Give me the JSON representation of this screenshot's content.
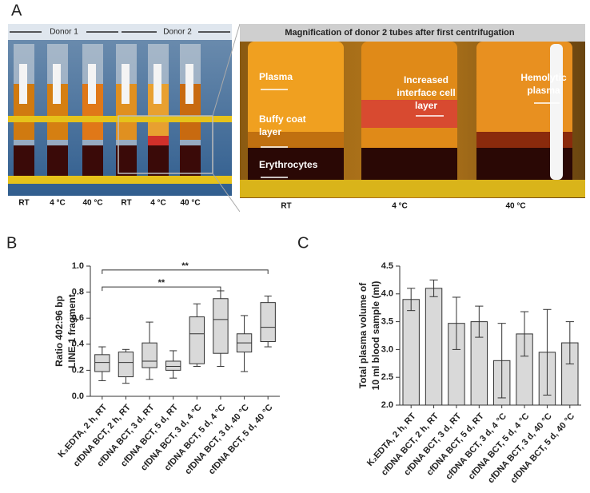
{
  "panel_labels": [
    "A",
    "B",
    "C"
  ],
  "photo": {
    "donor_labels": [
      "Donor 1",
      "Donor 2"
    ],
    "tube_labels": [
      "RT",
      "4 °C",
      "40 °C",
      "RT",
      "4 °C",
      "40 °C"
    ],
    "magnification_title": "Magnification of donor 2 tubes after first centrifugation",
    "annotations": [
      [
        "Plasma"
      ],
      [
        "Buffy coat",
        "layer"
      ],
      [
        "Erythrocytes"
      ],
      [
        "Increased",
        "interface cell",
        "layer"
      ],
      [
        "Hemolytic",
        "plasma"
      ]
    ],
    "magnified_tube_labels": [
      "RT",
      "4 °C",
      "40 °C"
    ]
  },
  "chart_data": [
    {
      "type": "box",
      "ylabel": [
        "Ratio 402:96 bp",
        "LINE-1 fragment"
      ],
      "categories": [
        "K₃EDTA, 2 h, RT",
        "cfDNA BCT, 2 h, RT",
        "cfDNA BCT, 3 d, RT",
        "cfDNA BCT, 5 d, RT",
        "cfDNA BCT, 3 d, 4 °C",
        "cfDNA BCT, 5 d, 4 °C",
        "cfDNA BCT, 3 d, 40 °C",
        "cfDNA BCT, 5 d, 40 °C"
      ],
      "min": [
        0.12,
        0.1,
        0.13,
        0.14,
        0.23,
        0.23,
        0.19,
        0.38
      ],
      "q1": [
        0.19,
        0.15,
        0.22,
        0.2,
        0.25,
        0.33,
        0.34,
        0.42
      ],
      "median": [
        0.26,
        0.26,
        0.27,
        0.23,
        0.48,
        0.59,
        0.41,
        0.53
      ],
      "q3": [
        0.32,
        0.34,
        0.41,
        0.27,
        0.61,
        0.75,
        0.48,
        0.72
      ],
      "max": [
        0.38,
        0.36,
        0.57,
        0.35,
        0.71,
        0.81,
        0.62,
        0.77
      ],
      "color": "#d9d9d9",
      "ylim": [
        0,
        1
      ],
      "yticks": [
        {
          "value": 0,
          "label": "0.0"
        },
        0.2,
        0.4,
        0.6,
        0.8,
        {
          "value": 1,
          "label": "1.0"
        }
      ],
      "brackets": [
        {
          "label": "**",
          "from": 0,
          "to": 7,
          "y": 0.97
        },
        {
          "label": "**",
          "from": 0,
          "to": 5,
          "y": 0.84
        }
      ]
    },
    {
      "type": "bar",
      "ylabel": [
        "Total plasma volume of",
        "10 ml blood sample (ml)"
      ],
      "categories": [
        "K₂EDTA, 2 h, RT",
        "cfDNA BCT, 2 h, RT",
        "cfDNA BCT, 3 d, RT",
        "cfDNA BCT, 5 d, RT",
        "cfDNA BCT, 3 d, 4 °C",
        "cfDNA BCT, 5 d, 4 °C",
        "cfDNA BCT, 3 d, 40 °C",
        "cfDNA BCT, 5 d, 40 °C"
      ],
      "values": [
        3.9,
        4.1,
        3.47,
        3.5,
        2.8,
        3.28,
        2.95,
        3.12
      ],
      "errors": [
        0.2,
        0.15,
        0.47,
        0.28,
        0.67,
        0.4,
        0.77,
        0.38
      ],
      "color": "#d9d9d9",
      "ylim": [
        2,
        4.5
      ],
      "yticks": [
        {
          "value": 2,
          "label": "2.0"
        },
        2.5,
        {
          "value": 3,
          "label": "3.0"
        },
        3.5,
        {
          "value": 4,
          "label": "4.0"
        },
        4.5
      ]
    }
  ]
}
